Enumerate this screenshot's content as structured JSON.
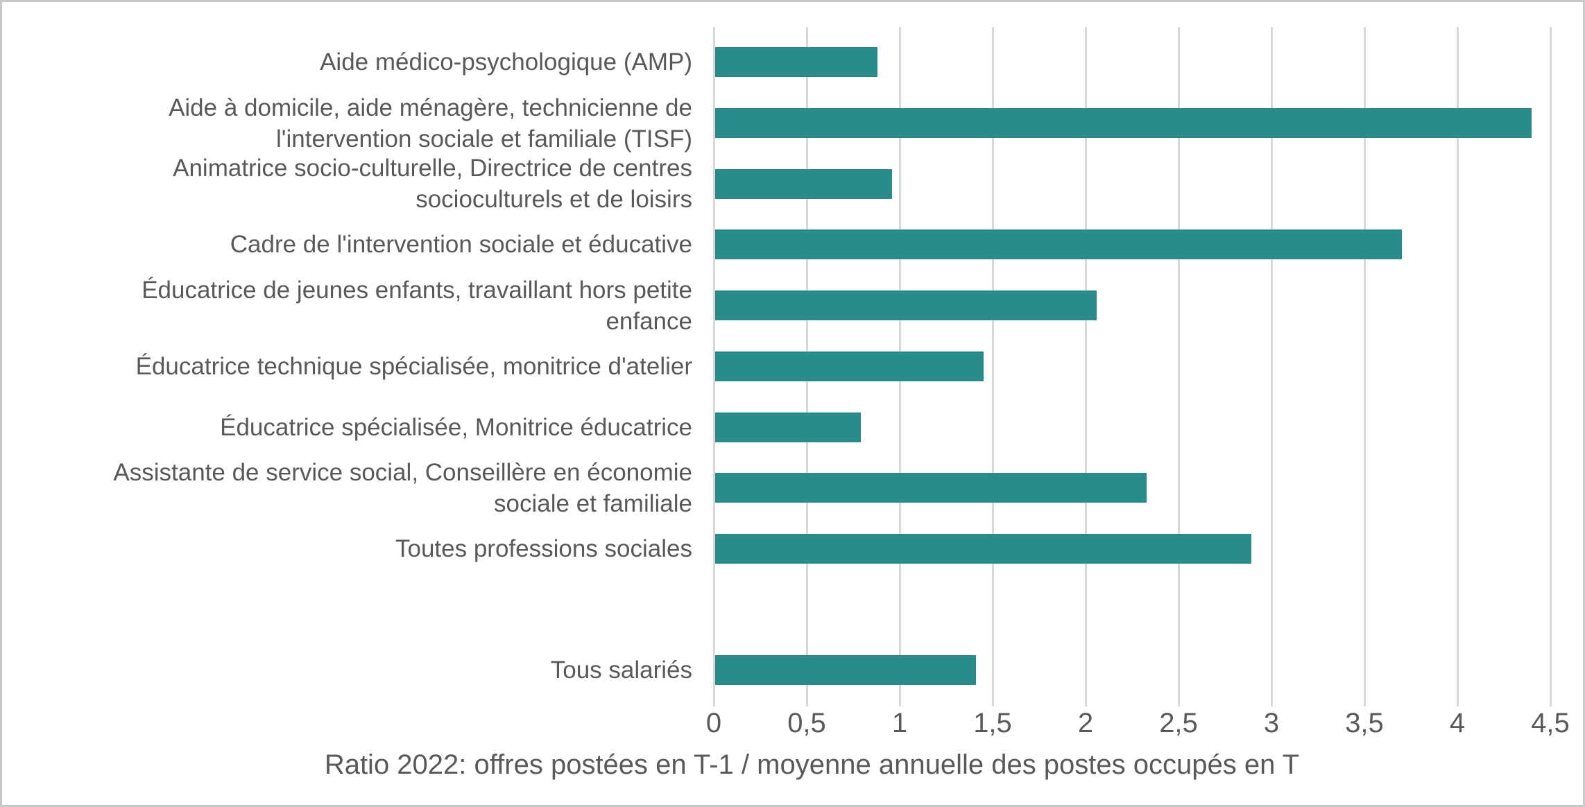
{
  "chart_data": {
    "type": "bar",
    "orientation": "horizontal",
    "title": "",
    "xlabel": "Ratio 2022: offres postées en T-1 / moyenne annuelle des postes occupés en T",
    "ylabel": "",
    "categories": [
      "Aide médico-psychologique (AMP)",
      "Aide à domicile, aide ménagère, technicienne de\nl'intervention sociale et familiale (TISF)",
      "Animatrice socio-culturelle, Directrice de centres\nsocioculturels et de loisirs",
      "Cadre de l'intervention sociale et éducative",
      "Éducatrice de jeunes enfants, travaillant hors petite\nenfance",
      "Éducatrice technique spécialisée, monitrice d'atelier",
      "Éducatrice spécialisée, Monitrice éducatrice",
      "Assistante de service social, Conseillère en économie\nsociale et familiale",
      "Toutes professions sociales",
      "Tous salariés"
    ],
    "values": [
      0.88,
      4.4,
      0.96,
      3.7,
      2.06,
      1.45,
      0.79,
      2.33,
      2.89,
      1.41
    ],
    "gap_before_category": "Tous salariés",
    "xlim": [
      0,
      4.5
    ],
    "xticks": [
      0,
      0.5,
      1,
      1.5,
      2,
      2.5,
      3,
      3.5,
      4,
      4.5
    ],
    "xtick_labels": [
      "0",
      "0,5",
      "1",
      "1,5",
      "2",
      "2,5",
      "3",
      "3,5",
      "4",
      "4,5"
    ],
    "grid": "vertical",
    "legend": "none",
    "bar_color": "#2A8C8A",
    "gridline_color": "#D9D9D9",
    "text_color": "#595959",
    "decimal_separator": ","
  }
}
